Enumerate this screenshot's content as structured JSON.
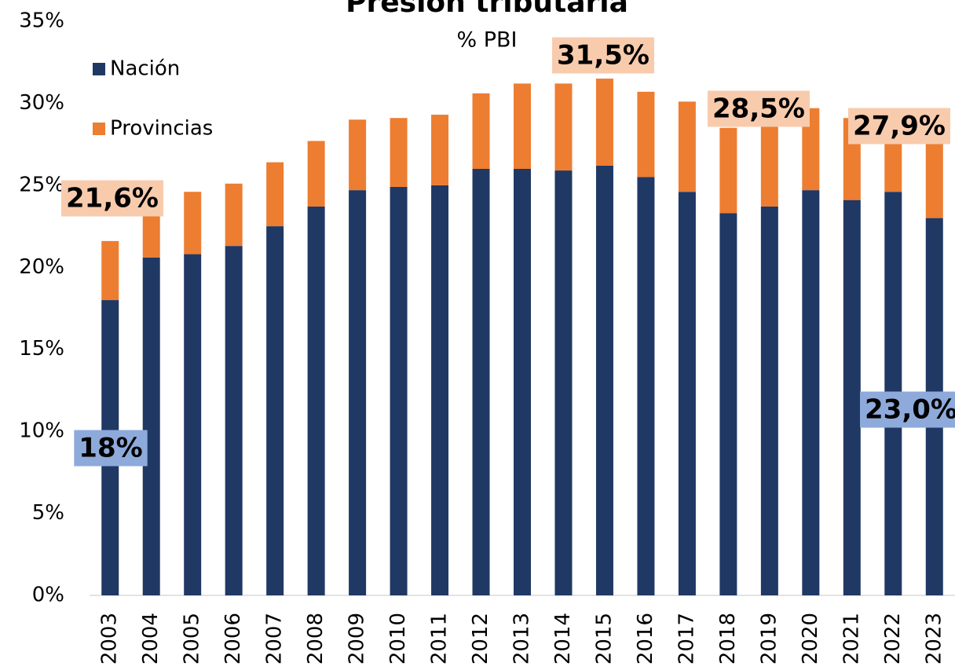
{
  "chart_data": {
    "type": "stacked_bar",
    "title": "Presión tributaria",
    "subtitle": "% PBI",
    "categories": [
      "2003",
      "2004",
      "2005",
      "2006",
      "2007",
      "2008",
      "2009",
      "2010",
      "2011",
      "2012",
      "2013",
      "2014",
      "2015",
      "2016",
      "2017",
      "2018",
      "2019",
      "2020",
      "2021",
      "2022",
      "2023"
    ],
    "series": [
      {
        "name": "Nación",
        "color": "#203864",
        "values": [
          18.0,
          20.6,
          20.8,
          21.3,
          22.5,
          23.7,
          24.7,
          24.9,
          25.0,
          26.0,
          26.0,
          25.9,
          26.2,
          25.5,
          24.6,
          23.3,
          23.7,
          24.7,
          24.1,
          24.6,
          23.0
        ],
        "value_labels": [
          "18%",
          null,
          null,
          null,
          null,
          null,
          null,
          null,
          null,
          null,
          null,
          null,
          null,
          null,
          null,
          null,
          null,
          null,
          null,
          null,
          "23,0%"
        ]
      },
      {
        "name": "Provincias",
        "color": "#ed7d31",
        "values": [
          3.6,
          2.8,
          3.8,
          3.8,
          3.9,
          4.0,
          4.3,
          4.2,
          4.3,
          4.6,
          5.2,
          5.3,
          5.3,
          5.2,
          5.5,
          5.2,
          5.2,
          5.0,
          5.0,
          3.6,
          4.9
        ]
      }
    ],
    "annotations": [
      "21,6%",
      "31,5%",
      "28,5%",
      "27,9%"
    ],
    "ylim": [
      0,
      35
    ],
    "yticks": [
      {
        "value": 0,
        "label": "0%"
      },
      {
        "value": 5,
        "label": "5%"
      },
      {
        "value": 10,
        "label": "10%"
      },
      {
        "value": 15,
        "label": "15%"
      },
      {
        "value": 20,
        "label": "20%"
      },
      {
        "value": 25,
        "label": "25%"
      },
      {
        "value": 30,
        "label": "30%"
      },
      {
        "value": 35,
        "label": "35%"
      }
    ],
    "legend": "top-left"
  }
}
